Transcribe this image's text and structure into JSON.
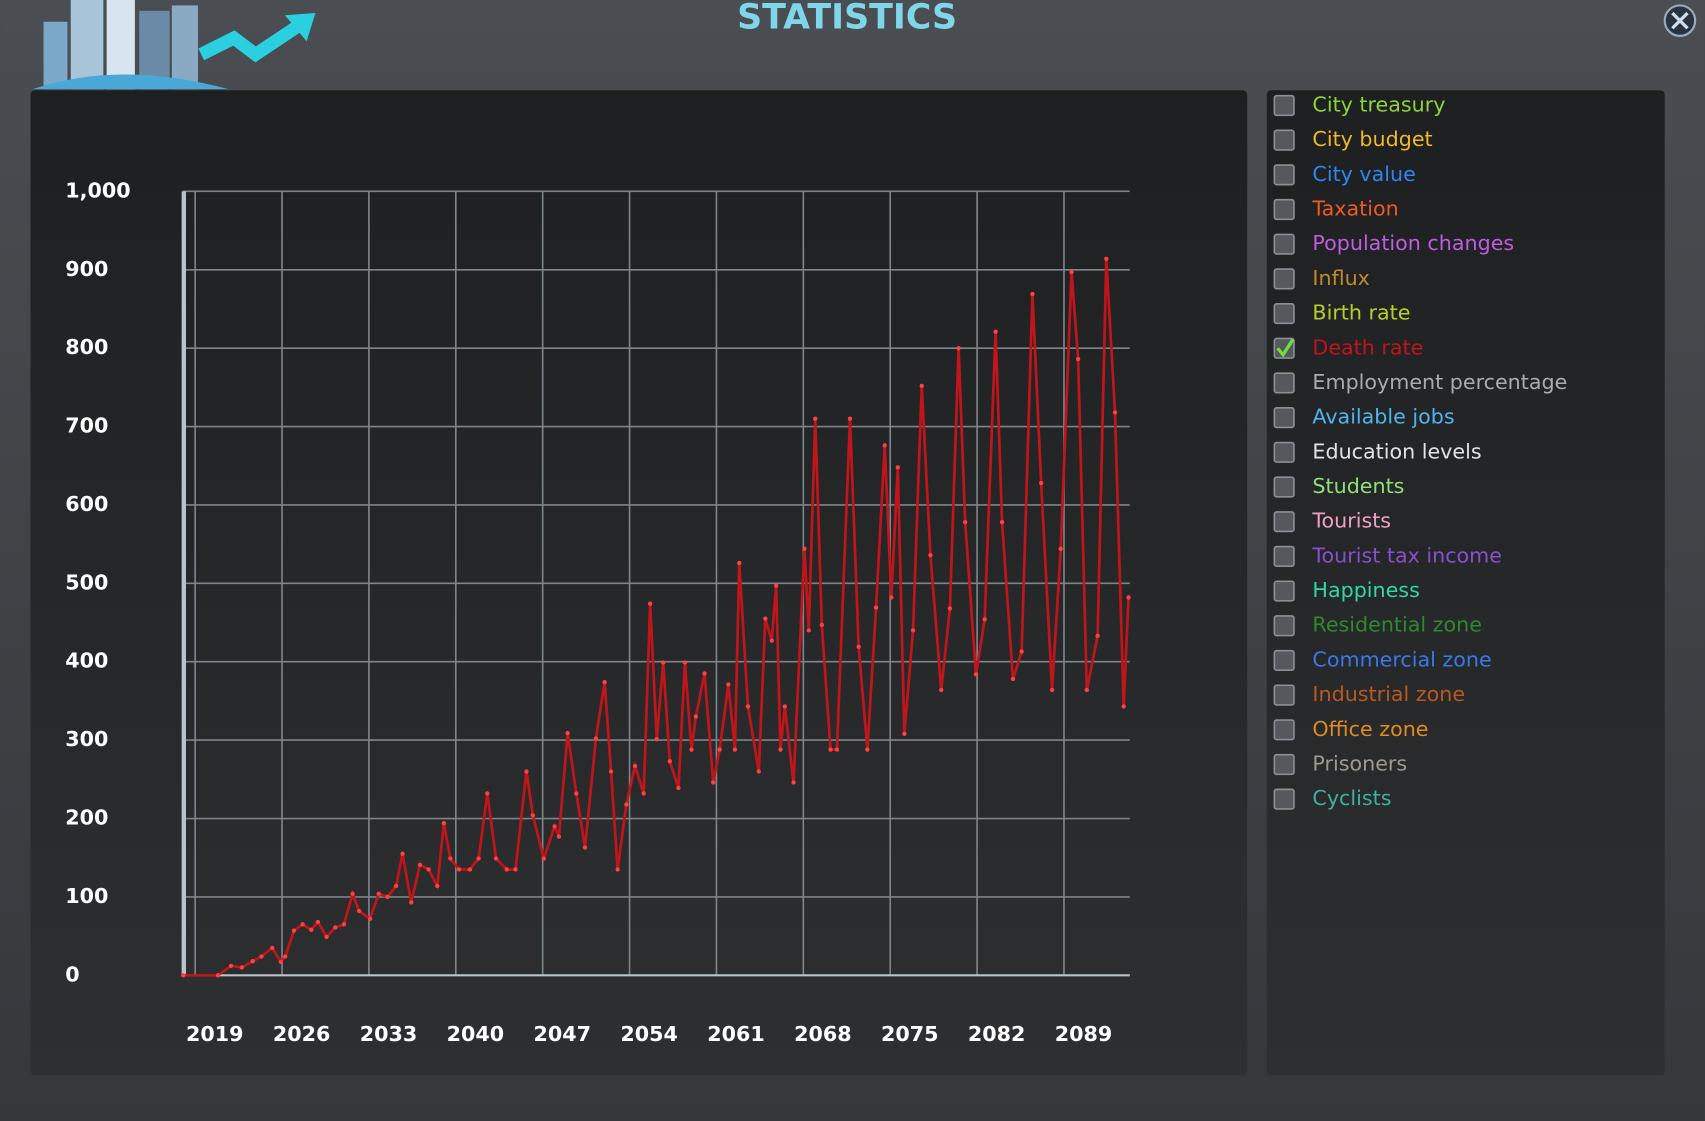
{
  "header": {
    "title": "STATISTICS"
  },
  "chart_data": {
    "type": "line",
    "xlim": [
      2018,
      2094.3
    ],
    "ylim": [
      0,
      1000
    ],
    "xticks": [
      2019,
      2026,
      2033,
      2040,
      2047,
      2054,
      2061,
      2068,
      2075,
      2082,
      2089
    ],
    "yticks": [
      0,
      100,
      200,
      300,
      400,
      500,
      600,
      700,
      800,
      900,
      {
        "value": 1000,
        "label": "1,000"
      }
    ],
    "grid": true,
    "series": [
      {
        "color": "#c0151a",
        "x": [
          2018.04,
          2020.84,
          2021.89,
          2022.76,
          2023.64,
          2024.34,
          2025.21,
          2025.91,
          2026.26,
          2026.96,
          2027.66,
          2028.36,
          2028.89,
          2029.59,
          2030.29,
          2030.99,
          2031.69,
          2032.21,
          2033.09,
          2033.79,
          2034.49,
          2035.19,
          2035.71,
          2036.41,
          2037.11,
          2037.81,
          2038.51,
          2039.04,
          2039.56,
          2040.26,
          2041.14,
          2041.84,
          2042.54,
          2043.24,
          2044.11,
          2044.81,
          2045.69,
          2046.21,
          2047.09,
          2047.96,
          2048.31,
          2049.01,
          2049.71,
          2050.41,
          2051.29,
          2051.99,
          2052.51,
          2053.04,
          2053.74,
          2054.44,
          2055.14,
          2055.66,
          2056.19,
          2056.71,
          2057.24,
          2057.94,
          2058.46,
          2058.99,
          2059.34,
          2060.04,
          2060.74,
          2061.26,
          2061.96,
          2062.49,
          2062.84,
          2063.54,
          2064.41,
          2064.94,
          2065.46,
          2065.81,
          2066.16,
          2066.51,
          2067.21,
          2068.09,
          2068.44,
          2068.96,
          2069.49,
          2070.19,
          2070.71,
          2071.76,
          2072.46,
          2073.16,
          2073.86,
          2074.56,
          2075.09,
          2075.61,
          2076.14,
          2076.84,
          2077.54,
          2078.24,
          2079.11,
          2079.81,
          2080.51,
          2081.04,
          2081.91,
          2082.61,
          2083.49,
          2084.01,
          2084.89,
          2085.59,
          2086.46,
          2087.16,
          2088.04,
          2088.74,
          2089.61,
          2090.14,
          2090.84,
          2091.71,
          2092.41,
          2093.11,
          2093.81,
          2094.2
        ],
        "values": [
          0,
          0,
          12,
          10,
          18,
          24,
          35,
          17,
          24,
          57,
          65,
          58,
          68,
          49,
          61,
          65,
          104,
          82,
          72,
          104,
          100,
          114,
          155,
          93,
          141,
          135,
          114,
          194,
          149,
          135,
          135,
          149,
          232,
          149,
          135,
          135,
          260,
          204,
          149,
          190,
          177,
          309,
          232,
          163,
          302,
          374,
          260,
          135,
          218,
          267,
          232,
          474,
          301,
          399,
          273,
          239,
          399,
          288,
          330,
          385,
          246,
          288,
          371,
          288,
          526,
          343,
          260,
          455,
          427,
          497,
          288,
          343,
          246,
          544,
          440,
          710,
          447,
          288,
          288,
          710,
          419,
          288,
          469,
          676,
          482,
          648,
          308,
          440,
          752,
          536,
          364,
          468,
          800,
          578,
          384,
          454,
          821,
          578,
          378,
          413,
          869,
          628,
          364,
          544,
          897,
          786,
          364,
          433,
          914,
          718,
          343,
          482
        ]
      }
    ]
  },
  "panel": {
    "items": [
      {
        "label": "City treasury",
        "color": "#8fd33a",
        "checked": false
      },
      {
        "label": "City budget",
        "color": "#f0b92a",
        "checked": false
      },
      {
        "label": "City value",
        "color": "#2f86f0",
        "checked": false
      },
      {
        "label": "Taxation",
        "color": "#f05a22",
        "checked": false
      },
      {
        "label": "Population changes",
        "color": "#c25ce0",
        "checked": false
      },
      {
        "label": "Influx",
        "color": "#c08a2a",
        "checked": false
      },
      {
        "label": "Birth rate",
        "color": "#b8cf2a",
        "checked": false
      },
      {
        "label": "Death rate",
        "color": "#c0151a",
        "checked": true
      },
      {
        "label": "Employment percentage",
        "color": "#a8acb0",
        "checked": false
      },
      {
        "label": "Available jobs",
        "color": "#4fb5ef",
        "checked": false
      },
      {
        "label": "Education levels",
        "color": "#e0e4e8",
        "checked": false
      },
      {
        "label": "Students",
        "color": "#8fe07a",
        "checked": false
      },
      {
        "label": "Tourists",
        "color": "#f0a0c8",
        "checked": false
      },
      {
        "label": "Tourist tax income",
        "color": "#8a4fd0",
        "checked": false
      },
      {
        "label": "Happiness",
        "color": "#2fd9a0",
        "checked": false
      },
      {
        "label": "Residential zone",
        "color": "#2f8a2f",
        "checked": false
      },
      {
        "label": "Commercial zone",
        "color": "#3a78e8",
        "checked": false
      },
      {
        "label": "Industrial zone",
        "color": "#b85a20",
        "checked": false
      },
      {
        "label": "Office zone",
        "color": "#e08a20",
        "checked": false
      },
      {
        "label": "Prisoners",
        "color": "#a09a90",
        "checked": false
      },
      {
        "label": "Cyclists",
        "color": "#3fb0a0",
        "checked": false
      }
    ]
  }
}
